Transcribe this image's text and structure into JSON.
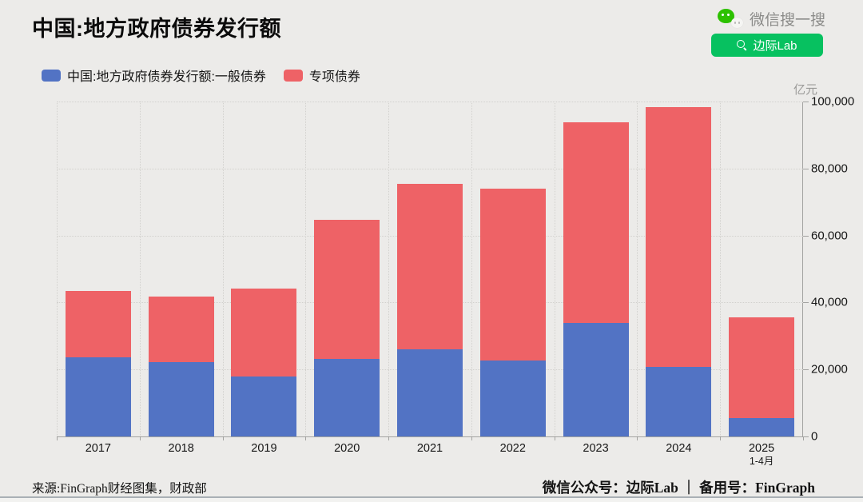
{
  "header": {
    "title": "中国:地方政府债券发行额",
    "wechat_search_label": "微信搜一搜",
    "search_button_label": "边际Lab",
    "wechat_green": "#07c160"
  },
  "legend": {
    "items": [
      {
        "label": "中国:地方政府债券发行额:一般债券",
        "color": "#5273c4"
      },
      {
        "label": "专项债券",
        "color": "#ee6266"
      }
    ]
  },
  "chart_data": {
    "type": "bar",
    "stacked": true,
    "title": "中国:地方政府债券发行额",
    "unit_label": "亿元",
    "categories": [
      "2017",
      "2018",
      "2019",
      "2020",
      "2021",
      "2022",
      "2023",
      "2024",
      "2025"
    ],
    "category_sublabels": [
      "",
      "",
      "",
      "",
      "",
      "",
      "",
      "",
      "1-4月"
    ],
    "series": [
      {
        "name": "中国:地方政府债券发行额:一般债券",
        "color": "#5273c4",
        "values": [
          23600,
          22300,
          17900,
          23200,
          26000,
          22600,
          33800,
          20800,
          5500
        ]
      },
      {
        "name": "专项债券",
        "color": "#ee6266",
        "values": [
          19900,
          19400,
          26200,
          41600,
          49400,
          51400,
          60100,
          77600,
          30000
        ]
      }
    ],
    "ylim": [
      0,
      100000
    ],
    "ytick_interval": 20000,
    "ytick_labels": [
      "0",
      "20,000",
      "40,000",
      "60,000",
      "80,000",
      "100,000"
    ],
    "grid": "dotted",
    "y_axis_position": "right",
    "legend_position": "top-left"
  },
  "footer": {
    "source": "来源:FinGraph财经图集，财政部",
    "public_account": "微信公众号：边际Lab ｜ 备用号：FinGraph"
  }
}
